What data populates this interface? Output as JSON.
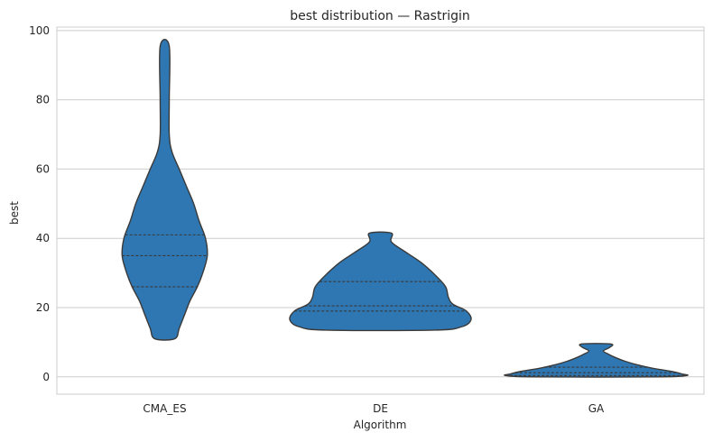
{
  "chart_data": {
    "type": "violin",
    "title": "best distribution — Rastrigin",
    "xlabel": "Algorithm",
    "ylabel": "best",
    "categories": [
      "CMA_ES",
      "DE",
      "GA"
    ],
    "ylim": [
      -5,
      101
    ],
    "yticks": [
      0,
      20,
      40,
      60,
      80,
      100
    ],
    "grid": "horizontal",
    "colors": {
      "fill": "#2f77b2",
      "edge": "#3a3a3a",
      "grid": "#cccccc",
      "frame": "#cccccc"
    },
    "violins": [
      {
        "category": "CMA_ES",
        "min": 11,
        "max": 95.5,
        "quartiles": [
          26,
          35,
          41
        ],
        "profile": [
          [
            11,
            0.11
          ],
          [
            14,
            0.16
          ],
          [
            18,
            0.22
          ],
          [
            22,
            0.28
          ],
          [
            26,
            0.36
          ],
          [
            30,
            0.42
          ],
          [
            35,
            0.47
          ],
          [
            40,
            0.45
          ],
          [
            45,
            0.38
          ],
          [
            50,
            0.32
          ],
          [
            55,
            0.24
          ],
          [
            60,
            0.16
          ],
          [
            65,
            0.08
          ],
          [
            70,
            0.05
          ],
          [
            80,
            0.05
          ],
          [
            95.5,
            0.05
          ]
        ]
      },
      {
        "category": "DE",
        "min": 13.5,
        "max": 41.5,
        "quartiles": [
          19,
          20.5,
          27.5
        ],
        "profile": [
          [
            13.5,
            0.6
          ],
          [
            14.5,
            0.9
          ],
          [
            16.5,
            1.0
          ],
          [
            19,
            0.95
          ],
          [
            21,
            0.8
          ],
          [
            23,
            0.75
          ],
          [
            26,
            0.72
          ],
          [
            29,
            0.62
          ],
          [
            33,
            0.45
          ],
          [
            36,
            0.28
          ],
          [
            39,
            0.12
          ],
          [
            41.5,
            0.12
          ]
        ]
      },
      {
        "category": "GA",
        "min": 0,
        "max": 9.5,
        "quartiles": [
          0.4,
          1.2,
          2.8
        ],
        "profile": [
          [
            0,
            0.7
          ],
          [
            0.4,
            1.0
          ],
          [
            0.8,
            0.95
          ],
          [
            1.5,
            0.85
          ],
          [
            2.5,
            0.62
          ],
          [
            3.5,
            0.45
          ],
          [
            4.5,
            0.32
          ],
          [
            5.5,
            0.22
          ],
          [
            6.5,
            0.14
          ],
          [
            7.5,
            0.08
          ],
          [
            8.5,
            0.15
          ],
          [
            9.5,
            0.16
          ]
        ]
      }
    ]
  }
}
